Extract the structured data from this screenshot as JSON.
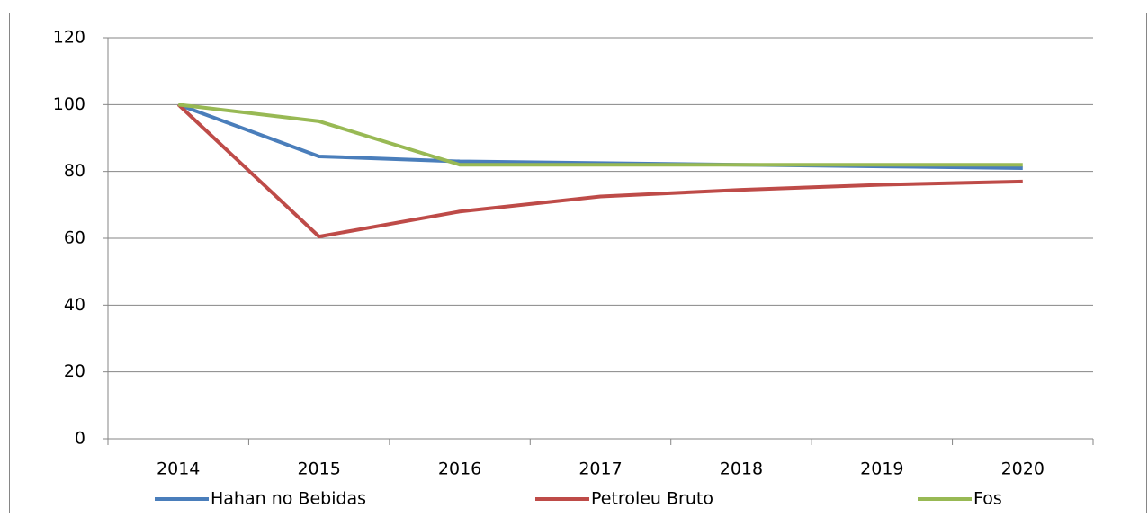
{
  "chart_data": {
    "type": "line",
    "categories": [
      "2014",
      "2015",
      "2016",
      "2017",
      "2018",
      "2019",
      "2020"
    ],
    "series": [
      {
        "name": "Hahan no Bebidas",
        "color": "#4a7ebb",
        "values": [
          100,
          84.5,
          83,
          82.5,
          82,
          81.5,
          81
        ]
      },
      {
        "name": "Petroleu Bruto",
        "color": "#be4b48",
        "values": [
          100,
          60.5,
          68,
          72.5,
          74.5,
          76,
          77
        ]
      },
      {
        "name": "Fos",
        "color": "#98b954",
        "values": [
          100,
          95,
          82,
          82,
          82,
          82,
          82
        ]
      }
    ],
    "ylim": [
      0,
      120
    ],
    "yticks": [
      0,
      20,
      40,
      60,
      80,
      100,
      120
    ],
    "grid": true,
    "legend": "bottom"
  }
}
